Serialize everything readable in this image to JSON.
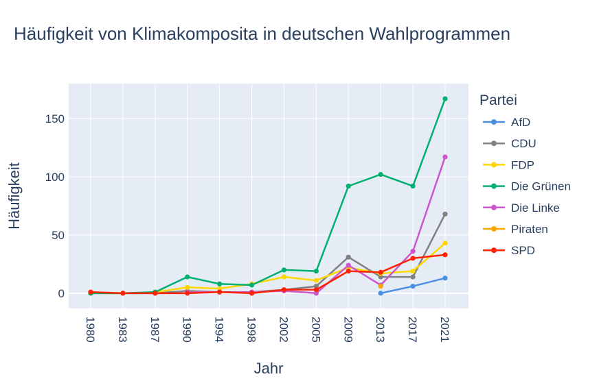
{
  "chart_data": {
    "type": "line",
    "title": "Häufigkeit von Klimakomposita in deutschen Wahlprogrammen",
    "xlabel": "Jahr",
    "ylabel": "Häufigkeit",
    "categories": [
      "1980",
      "1983",
      "1987",
      "1990",
      "1994",
      "1998",
      "2002",
      "2005",
      "2009",
      "2013",
      "2017",
      "2021"
    ],
    "ylim": [
      -13,
      180
    ],
    "yticks": [
      0,
      50,
      100,
      150
    ],
    "legend_title": "Partei",
    "legend_position": "right",
    "grid": true,
    "colors": {
      "plot_bg": "#e5ecf6",
      "grid": "#ffffff",
      "text": "#2a3f5f"
    },
    "series": [
      {
        "name": "AfD",
        "color": "#4a90e2",
        "values": [
          null,
          null,
          null,
          null,
          null,
          null,
          null,
          null,
          null,
          0,
          6,
          13
        ]
      },
      {
        "name": "CDU",
        "color": "#808080",
        "values": [
          0,
          0,
          0,
          2,
          1,
          1,
          3,
          6,
          31,
          14,
          14,
          68
        ]
      },
      {
        "name": "FDP",
        "color": "#ffd700",
        "values": [
          0,
          0,
          1,
          5,
          4,
          8,
          14,
          11,
          22,
          17,
          19,
          43
        ]
      },
      {
        "name": "Die Grünen",
        "color": "#00b070",
        "values": [
          0,
          0,
          1,
          14,
          8,
          7,
          20,
          19,
          92,
          102,
          92,
          167
        ]
      },
      {
        "name": "Die Linke",
        "color": "#cc55cc",
        "values": [
          null,
          null,
          null,
          1,
          1,
          1,
          2,
          0,
          24,
          7,
          36,
          117
        ]
      },
      {
        "name": "Piraten",
        "color": "#ffa500",
        "values": [
          null,
          null,
          null,
          null,
          null,
          null,
          null,
          null,
          null,
          6,
          null,
          null
        ]
      },
      {
        "name": "SPD",
        "color": "#ff2200",
        "values": [
          1,
          0,
          0,
          0,
          1,
          0,
          3,
          3,
          19,
          18,
          30,
          33
        ]
      }
    ]
  }
}
